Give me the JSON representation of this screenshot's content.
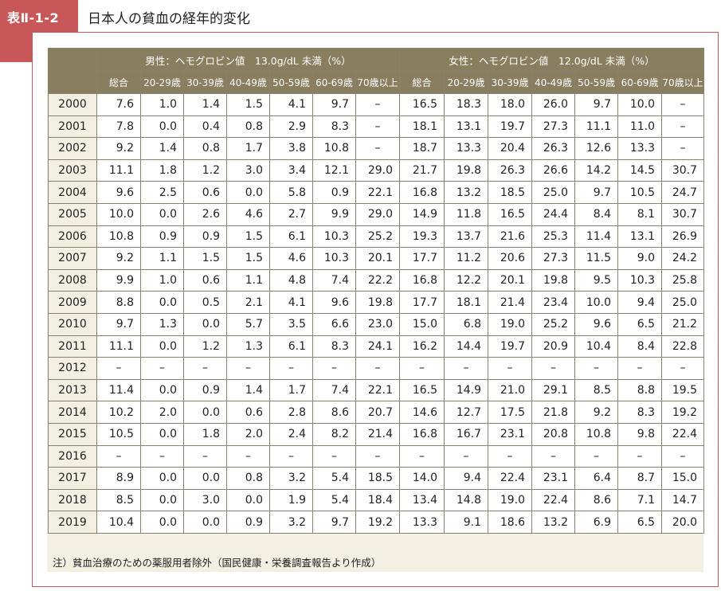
{
  "header": {
    "table_id": "表Ⅱ-1-2",
    "title": "日本人の貧血の経年的変化"
  },
  "table": {
    "group_headers": [
      "男性：ヘモグロビン値　13.0g/dL 未満（%）",
      "女性：ヘモグロビン値　12.0g/dL 未満（%）"
    ],
    "column_headers": [
      "総合",
      "20-29歳",
      "30-39歳",
      "40-49歳",
      "50-59歳",
      "60-69歳",
      "70歳以上"
    ],
    "rows": [
      {
        "year": "2000",
        "male": [
          "7.6",
          "1.0",
          "1.4",
          "1.5",
          "4.1",
          "9.7",
          "–"
        ],
        "female": [
          "16.5",
          "18.3",
          "18.0",
          "26.0",
          "9.7",
          "10.0",
          "–"
        ]
      },
      {
        "year": "2001",
        "male": [
          "7.8",
          "0.0",
          "0.4",
          "0.8",
          "2.9",
          "8.3",
          "–"
        ],
        "female": [
          "18.1",
          "13.1",
          "19.7",
          "27.3",
          "11.1",
          "11.0",
          "–"
        ]
      },
      {
        "year": "2002",
        "male": [
          "9.2",
          "1.4",
          "0.8",
          "1.7",
          "3.8",
          "10.8",
          "–"
        ],
        "female": [
          "18.7",
          "13.3",
          "20.4",
          "26.3",
          "12.6",
          "13.3",
          "–"
        ]
      },
      {
        "year": "2003",
        "male": [
          "11.1",
          "1.8",
          "1.2",
          "3.0",
          "3.4",
          "12.1",
          "29.0"
        ],
        "female": [
          "21.7",
          "19.8",
          "26.3",
          "26.6",
          "14.2",
          "14.5",
          "30.7"
        ]
      },
      {
        "year": "2004",
        "male": [
          "9.6",
          "2.5",
          "0.6",
          "0.0",
          "5.8",
          "0.9",
          "22.1"
        ],
        "female": [
          "16.8",
          "13.2",
          "18.5",
          "25.0",
          "9.7",
          "10.5",
          "24.7"
        ]
      },
      {
        "year": "2005",
        "male": [
          "10.0",
          "0.0",
          "2.6",
          "4.6",
          "2.7",
          "9.9",
          "29.0"
        ],
        "female": [
          "14.9",
          "11.8",
          "16.5",
          "24.4",
          "8.4",
          "8.1",
          "30.7"
        ]
      },
      {
        "year": "2006",
        "male": [
          "10.8",
          "0.9",
          "0.9",
          "1.5",
          "6.1",
          "10.3",
          "25.2"
        ],
        "female": [
          "19.3",
          "13.7",
          "21.6",
          "25.3",
          "11.4",
          "13.1",
          "26.9"
        ]
      },
      {
        "year": "2007",
        "male": [
          "9.2",
          "1.1",
          "1.5",
          "1.5",
          "4.6",
          "10.3",
          "20.1"
        ],
        "female": [
          "17.7",
          "11.2",
          "20.6",
          "27.3",
          "11.5",
          "9.0",
          "24.2"
        ]
      },
      {
        "year": "2008",
        "male": [
          "9.9",
          "1.0",
          "0.6",
          "1.1",
          "4.8",
          "7.4",
          "22.2"
        ],
        "female": [
          "16.8",
          "12.2",
          "20.1",
          "19.8",
          "9.5",
          "10.3",
          "25.8"
        ]
      },
      {
        "year": "2009",
        "male": [
          "8.8",
          "0.0",
          "0.5",
          "2.1",
          "4.1",
          "9.6",
          "19.8"
        ],
        "female": [
          "17.7",
          "18.1",
          "21.4",
          "23.4",
          "10.0",
          "9.4",
          "25.0"
        ]
      },
      {
        "year": "2010",
        "male": [
          "9.7",
          "1.3",
          "0.0",
          "5.7",
          "3.5",
          "6.6",
          "23.0"
        ],
        "female": [
          "15.0",
          "6.8",
          "19.0",
          "25.2",
          "9.6",
          "6.5",
          "21.2"
        ]
      },
      {
        "year": "2011",
        "male": [
          "11.1",
          "0.0",
          "1.2",
          "1.3",
          "6.1",
          "8.3",
          "24.1"
        ],
        "female": [
          "16.2",
          "14.4",
          "19.7",
          "20.9",
          "10.4",
          "8.4",
          "22.8"
        ]
      },
      {
        "year": "2012",
        "male": [
          "–",
          "–",
          "–",
          "–",
          "–",
          "–",
          "–"
        ],
        "female": [
          "–",
          "–",
          "–",
          "–",
          "–",
          "–",
          "–"
        ]
      },
      {
        "year": "2013",
        "male": [
          "11.4",
          "0.0",
          "0.9",
          "1.4",
          "1.7",
          "7.4",
          "22.1"
        ],
        "female": [
          "16.5",
          "14.9",
          "21.0",
          "29.1",
          "8.5",
          "8.8",
          "19.5"
        ]
      },
      {
        "year": "2014",
        "male": [
          "10.2",
          "2.0",
          "0.0",
          "0.6",
          "2.8",
          "8.6",
          "20.7"
        ],
        "female": [
          "14.6",
          "12.7",
          "17.5",
          "21.8",
          "9.2",
          "8.3",
          "19.2"
        ]
      },
      {
        "year": "2015",
        "male": [
          "10.5",
          "0.0",
          "1.8",
          "2.0",
          "2.4",
          "8.2",
          "21.4"
        ],
        "female": [
          "16.8",
          "16.7",
          "23.1",
          "20.8",
          "10.8",
          "9.8",
          "22.4"
        ]
      },
      {
        "year": "2016",
        "male": [
          "–",
          "–",
          "–",
          "–",
          "–",
          "–",
          "–"
        ],
        "female": [
          "–",
          "–",
          "–",
          "–",
          "–",
          "–",
          "–"
        ]
      },
      {
        "year": "2017",
        "male": [
          "8.9",
          "0.0",
          "0.0",
          "0.8",
          "3.2",
          "5.4",
          "18.5"
        ],
        "female": [
          "14.0",
          "9.4",
          "22.4",
          "23.1",
          "6.4",
          "8.7",
          "15.0"
        ]
      },
      {
        "year": "2018",
        "male": [
          "8.5",
          "0.0",
          "3.0",
          "0.0",
          "1.9",
          "5.4",
          "18.4"
        ],
        "female": [
          "13.4",
          "14.8",
          "19.0",
          "22.4",
          "8.6",
          "7.1",
          "14.7"
        ]
      },
      {
        "year": "2019",
        "male": [
          "10.4",
          "0.0",
          "0.0",
          "0.9",
          "3.2",
          "9.7",
          "19.2"
        ],
        "female": [
          "13.3",
          "9.1",
          "18.6",
          "13.2",
          "6.9",
          "6.5",
          "20.0"
        ]
      }
    ]
  },
  "note": "注）貧血治療のための薬服用者除外（国民健康・栄養調査報告より作成）",
  "colors": {
    "accent": "#c8575a",
    "header_bg": "#8a7e60",
    "panel_bg": "#f3efe3"
  }
}
